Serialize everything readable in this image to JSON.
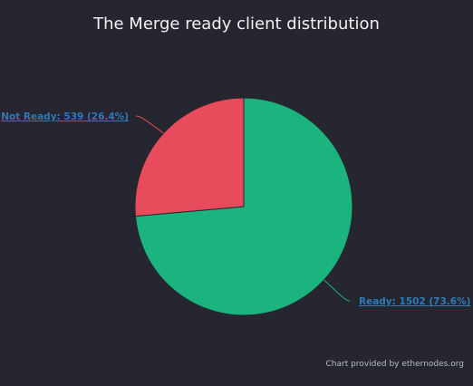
{
  "chart_data": {
    "type": "pie",
    "title": "The Merge ready client distribution",
    "slices": [
      {
        "name": "Ready",
        "value": 1502,
        "percent": 73.6,
        "label": "Ready: 1502 (73.6%)",
        "color": "#1bb37e"
      },
      {
        "name": "Not Ready",
        "value": 539,
        "percent": 26.4,
        "label": "Not Ready: 539 (26.4%)",
        "color": "#e84b5c"
      }
    ],
    "start_angle_deg": 0,
    "legend": "none",
    "data_labels": true
  },
  "credits": "Chart provided by ethernodes.org",
  "colors": {
    "background": "#25262f",
    "title": "#f2f2f2",
    "label": "#2c7bb8",
    "slice_border": "#25262f"
  }
}
